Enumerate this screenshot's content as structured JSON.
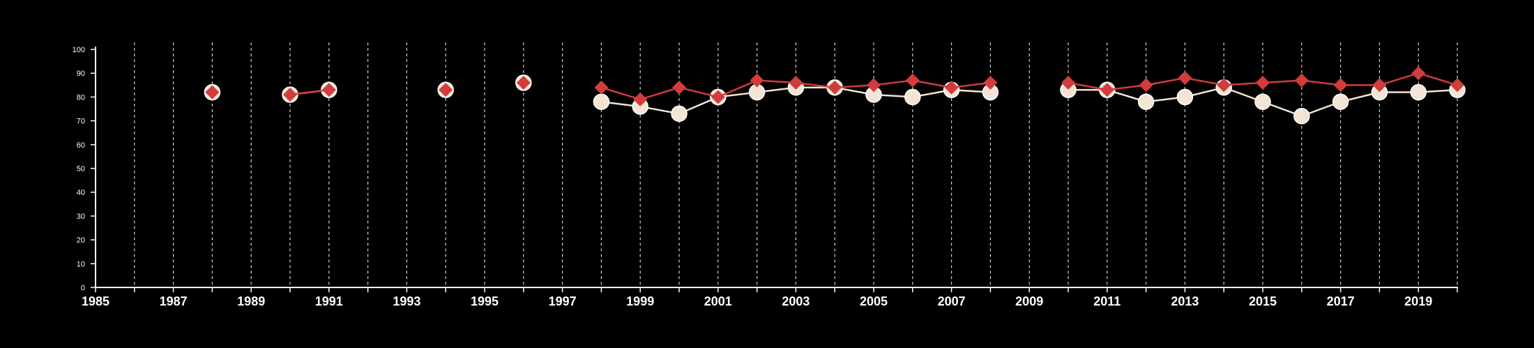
{
  "chart_data": {
    "type": "line",
    "title": "",
    "xlabel": "",
    "ylabel": "",
    "xlim": [
      1985,
      2020
    ],
    "ylim": [
      0,
      100
    ],
    "x_ticks": [
      1985,
      1987,
      1989,
      1991,
      1993,
      1995,
      1997,
      1999,
      2001,
      2003,
      2005,
      2007,
      2009,
      2011,
      2013,
      2015,
      2017,
      2019
    ],
    "y_ticks": [
      0,
      10,
      20,
      30,
      40,
      50,
      60,
      70,
      80,
      90,
      100
    ],
    "grid": "vertical dashed at every year",
    "legend": "none",
    "series": [
      {
        "marker": "circle",
        "color": "#f3e4d3",
        "points": [
          [
            1988,
            82
          ],
          [
            1990,
            81
          ],
          [
            1991,
            83
          ],
          [
            1994,
            83
          ],
          [
            1996,
            86
          ],
          [
            1998,
            78
          ],
          [
            1999,
            76
          ],
          [
            2000,
            73
          ],
          [
            2001,
            80
          ],
          [
            2002,
            82
          ],
          [
            2003,
            84
          ],
          [
            2004,
            84
          ],
          [
            2005,
            81
          ],
          [
            2006,
            80
          ],
          [
            2007,
            83
          ],
          [
            2008,
            82
          ],
          [
            2010,
            83
          ],
          [
            2011,
            83
          ],
          [
            2012,
            78
          ],
          [
            2013,
            80
          ],
          [
            2014,
            84
          ],
          [
            2015,
            78
          ],
          [
            2016,
            72
          ],
          [
            2017,
            78
          ],
          [
            2018,
            82
          ],
          [
            2019,
            82
          ],
          [
            2020,
            83
          ]
        ]
      },
      {
        "marker": "diamond",
        "color": "#d23c3c",
        "points": [
          [
            1988,
            82
          ],
          [
            1990,
            81
          ],
          [
            1991,
            83
          ],
          [
            1994,
            83
          ],
          [
            1996,
            86
          ],
          [
            1998,
            84
          ],
          [
            1999,
            79
          ],
          [
            2000,
            84
          ],
          [
            2001,
            80
          ],
          [
            2002,
            87
          ],
          [
            2003,
            86
          ],
          [
            2004,
            84
          ],
          [
            2005,
            85
          ],
          [
            2006,
            87
          ],
          [
            2007,
            84
          ],
          [
            2008,
            86
          ],
          [
            2010,
            86
          ],
          [
            2011,
            83
          ],
          [
            2012,
            85
          ],
          [
            2013,
            88
          ],
          [
            2014,
            85
          ],
          [
            2015,
            86
          ],
          [
            2016,
            87
          ],
          [
            2017,
            85
          ],
          [
            2018,
            85
          ],
          [
            2019,
            90
          ],
          [
            2020,
            85
          ]
        ]
      }
    ]
  }
}
